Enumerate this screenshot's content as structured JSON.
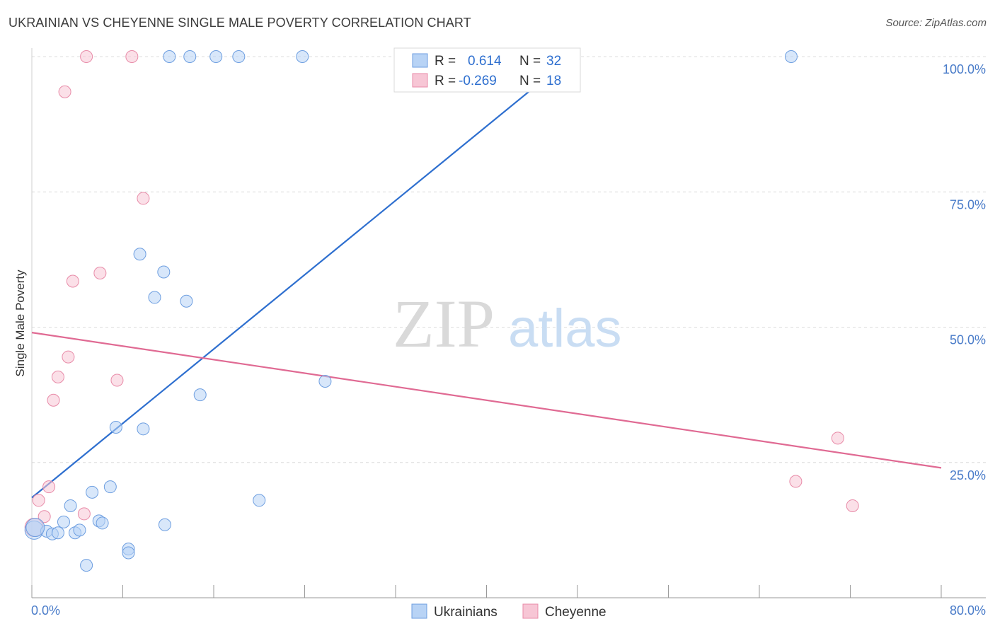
{
  "title": "UKRAINIAN VS CHEYENNE SINGLE MALE POVERTY CORRELATION CHART",
  "source": "Source: ZipAtlas.com",
  "watermark": {
    "zip": "ZIP",
    "atlas": "atlas"
  },
  "chart_data": {
    "type": "scatter",
    "title": "UKRAINIAN VS CHEYENNE SINGLE MALE POVERTY CORRELATION CHART",
    "xlabel": "",
    "ylabel": "Single Male Poverty",
    "xlim": [
      0,
      80
    ],
    "ylim": [
      0,
      100
    ],
    "x_tick_labels": [
      "0.0%",
      "80.0%"
    ],
    "y_ticks": [
      {
        "value": 25,
        "label": "25.0%"
      },
      {
        "value": 50,
        "label": "50.0%"
      },
      {
        "value": 75,
        "label": "75.0%"
      },
      {
        "value": 100,
        "label": "100.0%"
      }
    ],
    "grid": true,
    "legend_position": "top-center",
    "series": [
      {
        "name": "Ukrainians",
        "color": "#6d9ee0",
        "fill": "#b8d3f5",
        "line_color": "#2e6fcf",
        "R": "0.614",
        "N": "32",
        "points": [
          [
            0.2,
            12.5
          ],
          [
            1.3,
            12.3
          ],
          [
            1.8,
            11.8
          ],
          [
            2.3,
            12.0
          ],
          [
            2.8,
            14.0
          ],
          [
            3.4,
            17.0
          ],
          [
            3.8,
            12.0
          ],
          [
            4.2,
            12.5
          ],
          [
            4.8,
            6.0
          ],
          [
            5.3,
            19.5
          ],
          [
            5.9,
            14.2
          ],
          [
            6.2,
            13.8
          ],
          [
            6.9,
            20.5
          ],
          [
            7.4,
            31.5
          ],
          [
            8.5,
            9.0
          ],
          [
            8.5,
            8.3
          ],
          [
            9.5,
            63.5
          ],
          [
            9.8,
            31.2
          ],
          [
            10.8,
            55.5
          ],
          [
            11.6,
            60.2
          ],
          [
            11.7,
            13.5
          ],
          [
            13.6,
            54.8
          ],
          [
            14.8,
            37.5
          ],
          [
            20.0,
            18.0
          ],
          [
            25.8,
            40.0
          ],
          [
            12.1,
            100
          ],
          [
            13.9,
            100
          ],
          [
            16.2,
            100
          ],
          [
            18.2,
            100
          ],
          [
            23.8,
            100
          ],
          [
            66.8,
            100
          ],
          [
            0.3,
            13.0
          ]
        ],
        "trend": [
          [
            0.0,
            18.5
          ],
          [
            47.5,
            100
          ]
        ]
      },
      {
        "name": "Cheyenne",
        "color": "#e88ba8",
        "fill": "#f7c6d5",
        "line_color": "#e06a93",
        "R": "-0.269",
        "N": "18",
        "points": [
          [
            0.6,
            18.0
          ],
          [
            1.1,
            15.0
          ],
          [
            1.5,
            20.5
          ],
          [
            1.9,
            36.5
          ],
          [
            2.3,
            40.8
          ],
          [
            2.9,
            93.5
          ],
          [
            3.2,
            44.5
          ],
          [
            3.6,
            58.5
          ],
          [
            4.6,
            15.5
          ],
          [
            4.8,
            100
          ],
          [
            6.0,
            60.0
          ],
          [
            7.5,
            40.2
          ],
          [
            8.8,
            100
          ],
          [
            9.8,
            73.8
          ],
          [
            67.2,
            21.5
          ],
          [
            70.9,
            29.5
          ],
          [
            72.2,
            17.0
          ],
          [
            0.2,
            13.0
          ]
        ],
        "trend": [
          [
            0.0,
            49.0
          ],
          [
            80.0,
            24.0
          ]
        ]
      }
    ]
  },
  "legend": {
    "r_label": "R =",
    "n_label": "N =",
    "rows": [
      {
        "R": "0.614",
        "N": "32"
      },
      {
        "R": "-0.269",
        "N": "18"
      }
    ]
  },
  "bottom_legend": [
    "Ukrainians",
    "Cheyenne"
  ]
}
